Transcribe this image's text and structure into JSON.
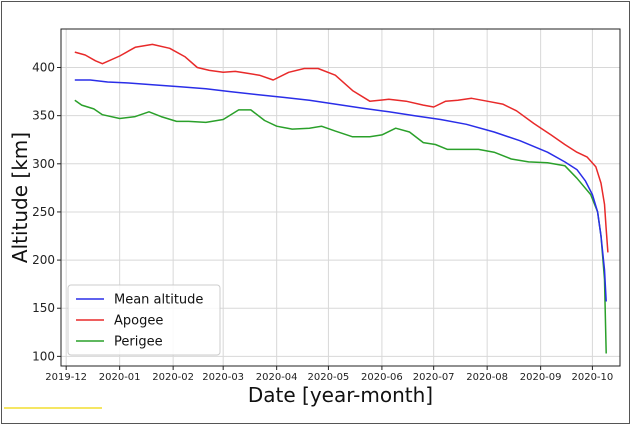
{
  "chart_data": {
    "type": "line",
    "xlabel": "Date [year-month]",
    "ylabel": "Altitude [km]",
    "xlim": [
      "2019-11-28",
      "2020-10-17"
    ],
    "ylim": [
      90,
      440
    ],
    "x_ticks": [
      "2019-12",
      "2020-01",
      "2020-02",
      "2020-03",
      "2020-04",
      "2020-05",
      "2020-06",
      "2020-07",
      "2020-08",
      "2020-09",
      "2020-10"
    ],
    "y_ticks": [
      100,
      150,
      200,
      250,
      300,
      350,
      400
    ],
    "grid": true,
    "legend_position": "lower-left",
    "series": [
      {
        "name": "Mean altitude",
        "color": "#2a2ee8",
        "points": [
          [
            "2019-12-06",
            387
          ],
          [
            "2019-12-15",
            387
          ],
          [
            "2019-12-25",
            385
          ],
          [
            "2020-01-05",
            384
          ],
          [
            "2020-01-20",
            382
          ],
          [
            "2020-02-05",
            380
          ],
          [
            "2020-02-20",
            378
          ],
          [
            "2020-03-05",
            375
          ],
          [
            "2020-03-20",
            372
          ],
          [
            "2020-04-05",
            369
          ],
          [
            "2020-04-20",
            366
          ],
          [
            "2020-05-05",
            362
          ],
          [
            "2020-05-20",
            358
          ],
          [
            "2020-06-05",
            354
          ],
          [
            "2020-06-20",
            350
          ],
          [
            "2020-07-05",
            346
          ],
          [
            "2020-07-20",
            341
          ],
          [
            "2020-08-05",
            333
          ],
          [
            "2020-08-20",
            324
          ],
          [
            "2020-09-05",
            312
          ],
          [
            "2020-09-15",
            302
          ],
          [
            "2020-09-22",
            294
          ],
          [
            "2020-09-27",
            282
          ],
          [
            "2020-10-01",
            268
          ],
          [
            "2020-10-04",
            250
          ],
          [
            "2020-10-06",
            225
          ],
          [
            "2020-10-08",
            190
          ],
          [
            "2020-10-09",
            157
          ]
        ]
      },
      {
        "name": "Apogee",
        "color": "#e82a2a",
        "points": [
          [
            "2019-12-06",
            416
          ],
          [
            "2019-12-12",
            413
          ],
          [
            "2019-12-18",
            407
          ],
          [
            "2019-12-22",
            404
          ],
          [
            "2020-01-01",
            412
          ],
          [
            "2020-01-10",
            421
          ],
          [
            "2020-01-20",
            424
          ],
          [
            "2020-01-30",
            420
          ],
          [
            "2020-02-08",
            411
          ],
          [
            "2020-02-15",
            400
          ],
          [
            "2020-02-22",
            397
          ],
          [
            "2020-03-01",
            395
          ],
          [
            "2020-03-08",
            396
          ],
          [
            "2020-03-15",
            394
          ],
          [
            "2020-03-22",
            392
          ],
          [
            "2020-03-30",
            387
          ],
          [
            "2020-04-08",
            395
          ],
          [
            "2020-04-17",
            399
          ],
          [
            "2020-04-25",
            399
          ],
          [
            "2020-05-05",
            392
          ],
          [
            "2020-05-15",
            376
          ],
          [
            "2020-05-25",
            365
          ],
          [
            "2020-06-05",
            367
          ],
          [
            "2020-06-15",
            365
          ],
          [
            "2020-06-25",
            361
          ],
          [
            "2020-07-01",
            359
          ],
          [
            "2020-07-08",
            365
          ],
          [
            "2020-07-15",
            366
          ],
          [
            "2020-07-23",
            368
          ],
          [
            "2020-08-01",
            365
          ],
          [
            "2020-08-10",
            362
          ],
          [
            "2020-08-18",
            355
          ],
          [
            "2020-08-28",
            342
          ],
          [
            "2020-09-07",
            330
          ],
          [
            "2020-09-15",
            320
          ],
          [
            "2020-09-22",
            312
          ],
          [
            "2020-09-28",
            307
          ],
          [
            "2020-10-03",
            297
          ],
          [
            "2020-10-06",
            280
          ],
          [
            "2020-10-08",
            258
          ],
          [
            "2020-10-09",
            232
          ],
          [
            "2020-10-10",
            208
          ]
        ]
      },
      {
        "name": "Perigee",
        "color": "#2aa02a",
        "points": [
          [
            "2019-12-06",
            366
          ],
          [
            "2019-12-10",
            361
          ],
          [
            "2019-12-17",
            357
          ],
          [
            "2019-12-22",
            351
          ],
          [
            "2020-01-01",
            347
          ],
          [
            "2020-01-10",
            349
          ],
          [
            "2020-01-18",
            354
          ],
          [
            "2020-01-25",
            349
          ],
          [
            "2020-02-03",
            344
          ],
          [
            "2020-02-10",
            344
          ],
          [
            "2020-02-20",
            343
          ],
          [
            "2020-03-01",
            346
          ],
          [
            "2020-03-10",
            356
          ],
          [
            "2020-03-17",
            356
          ],
          [
            "2020-03-25",
            345
          ],
          [
            "2020-04-01",
            339
          ],
          [
            "2020-04-10",
            336
          ],
          [
            "2020-04-20",
            337
          ],
          [
            "2020-04-27",
            339
          ],
          [
            "2020-05-05",
            334
          ],
          [
            "2020-05-15",
            328
          ],
          [
            "2020-05-25",
            328
          ],
          [
            "2020-06-01",
            330
          ],
          [
            "2020-06-09",
            337
          ],
          [
            "2020-06-17",
            333
          ],
          [
            "2020-06-25",
            322
          ],
          [
            "2020-07-02",
            320
          ],
          [
            "2020-07-09",
            315
          ],
          [
            "2020-07-18",
            315
          ],
          [
            "2020-07-27",
            315
          ],
          [
            "2020-08-05",
            312
          ],
          [
            "2020-08-15",
            305
          ],
          [
            "2020-08-25",
            302
          ],
          [
            "2020-09-05",
            301
          ],
          [
            "2020-09-15",
            298
          ],
          [
            "2020-09-22",
            285
          ],
          [
            "2020-09-30",
            268
          ],
          [
            "2020-10-04",
            250
          ],
          [
            "2020-10-06",
            225
          ],
          [
            "2020-10-08",
            180
          ],
          [
            "2020-10-09",
            103
          ]
        ]
      }
    ]
  },
  "colors": {
    "grid": "#d8d8d8",
    "axes": "#222222",
    "frame": "#555555",
    "accent_line": "#f5e663"
  }
}
